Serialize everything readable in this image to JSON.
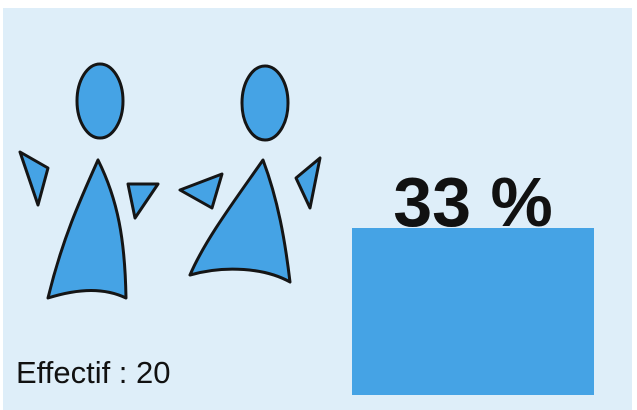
{
  "chart_data": {
    "type": "bar",
    "values": [
      33
    ],
    "value_labels": [
      "33 %"
    ],
    "color": "#45a3e5",
    "footnote": "Effectif : 20"
  }
}
